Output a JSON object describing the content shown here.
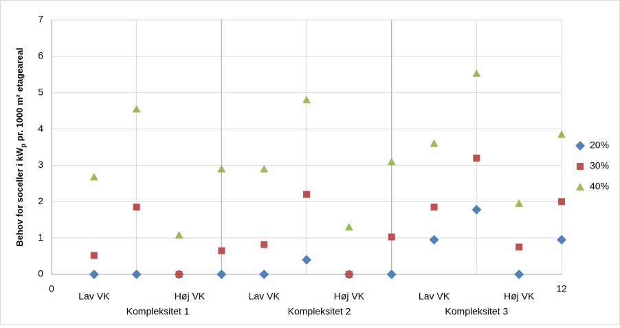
{
  "chart_data": {
    "type": "scatter",
    "y_label": [
      "Behov for soceller i kW",
      "p",
      " pr. 1000 m² etageareal"
    ],
    "x": [
      1,
      2,
      3,
      4,
      5,
      6,
      7,
      8,
      9,
      10,
      11,
      12
    ],
    "series": [
      {
        "name": "20%",
        "color": "#4f81bd",
        "marker": "diamond",
        "values": [
          0,
          0,
          0,
          0,
          0,
          0.4,
          0,
          0,
          0.95,
          1.78,
          0,
          0.95
        ]
      },
      {
        "name": "30%",
        "color": "#c0504d",
        "marker": "square",
        "values": [
          0.52,
          1.85,
          0,
          0.65,
          0.82,
          2.2,
          0,
          1.03,
          1.85,
          3.2,
          0.75,
          2.0
        ]
      },
      {
        "name": "40%",
        "color": "#9bbb59",
        "marker": "triangle",
        "values": [
          2.68,
          4.55,
          1.08,
          2.9,
          2.9,
          4.8,
          1.3,
          3.1,
          3.6,
          5.53,
          1.95,
          3.85
        ]
      }
    ],
    "xlim": [
      0,
      12
    ],
    "xticks": [
      0,
      12
    ],
    "ylim": [
      0,
      7
    ],
    "yticks": [
      0,
      1,
      2,
      3,
      4,
      5,
      6,
      7
    ],
    "xgrid": [
      2,
      4,
      6,
      8,
      10,
      12
    ],
    "group_separators": [
      4,
      8
    ],
    "x_labels": [
      {
        "x": 1,
        "label": "Lav VK"
      },
      {
        "x": 3.25,
        "label": "Høj VK"
      },
      {
        "x": 5,
        "label": "Lav VK"
      },
      {
        "x": 7,
        "label": "Høj VK"
      },
      {
        "x": 9,
        "label": "Lav VK"
      },
      {
        "x": 11,
        "label": "Høj VK"
      }
    ],
    "groups": [
      {
        "x": 2.5,
        "label": "Kompleksitet 1"
      },
      {
        "x": 6.3,
        "label": "Kompleksitet 2"
      },
      {
        "x": 10,
        "label": "Kompleksitet 3"
      }
    ],
    "legend": "right"
  }
}
